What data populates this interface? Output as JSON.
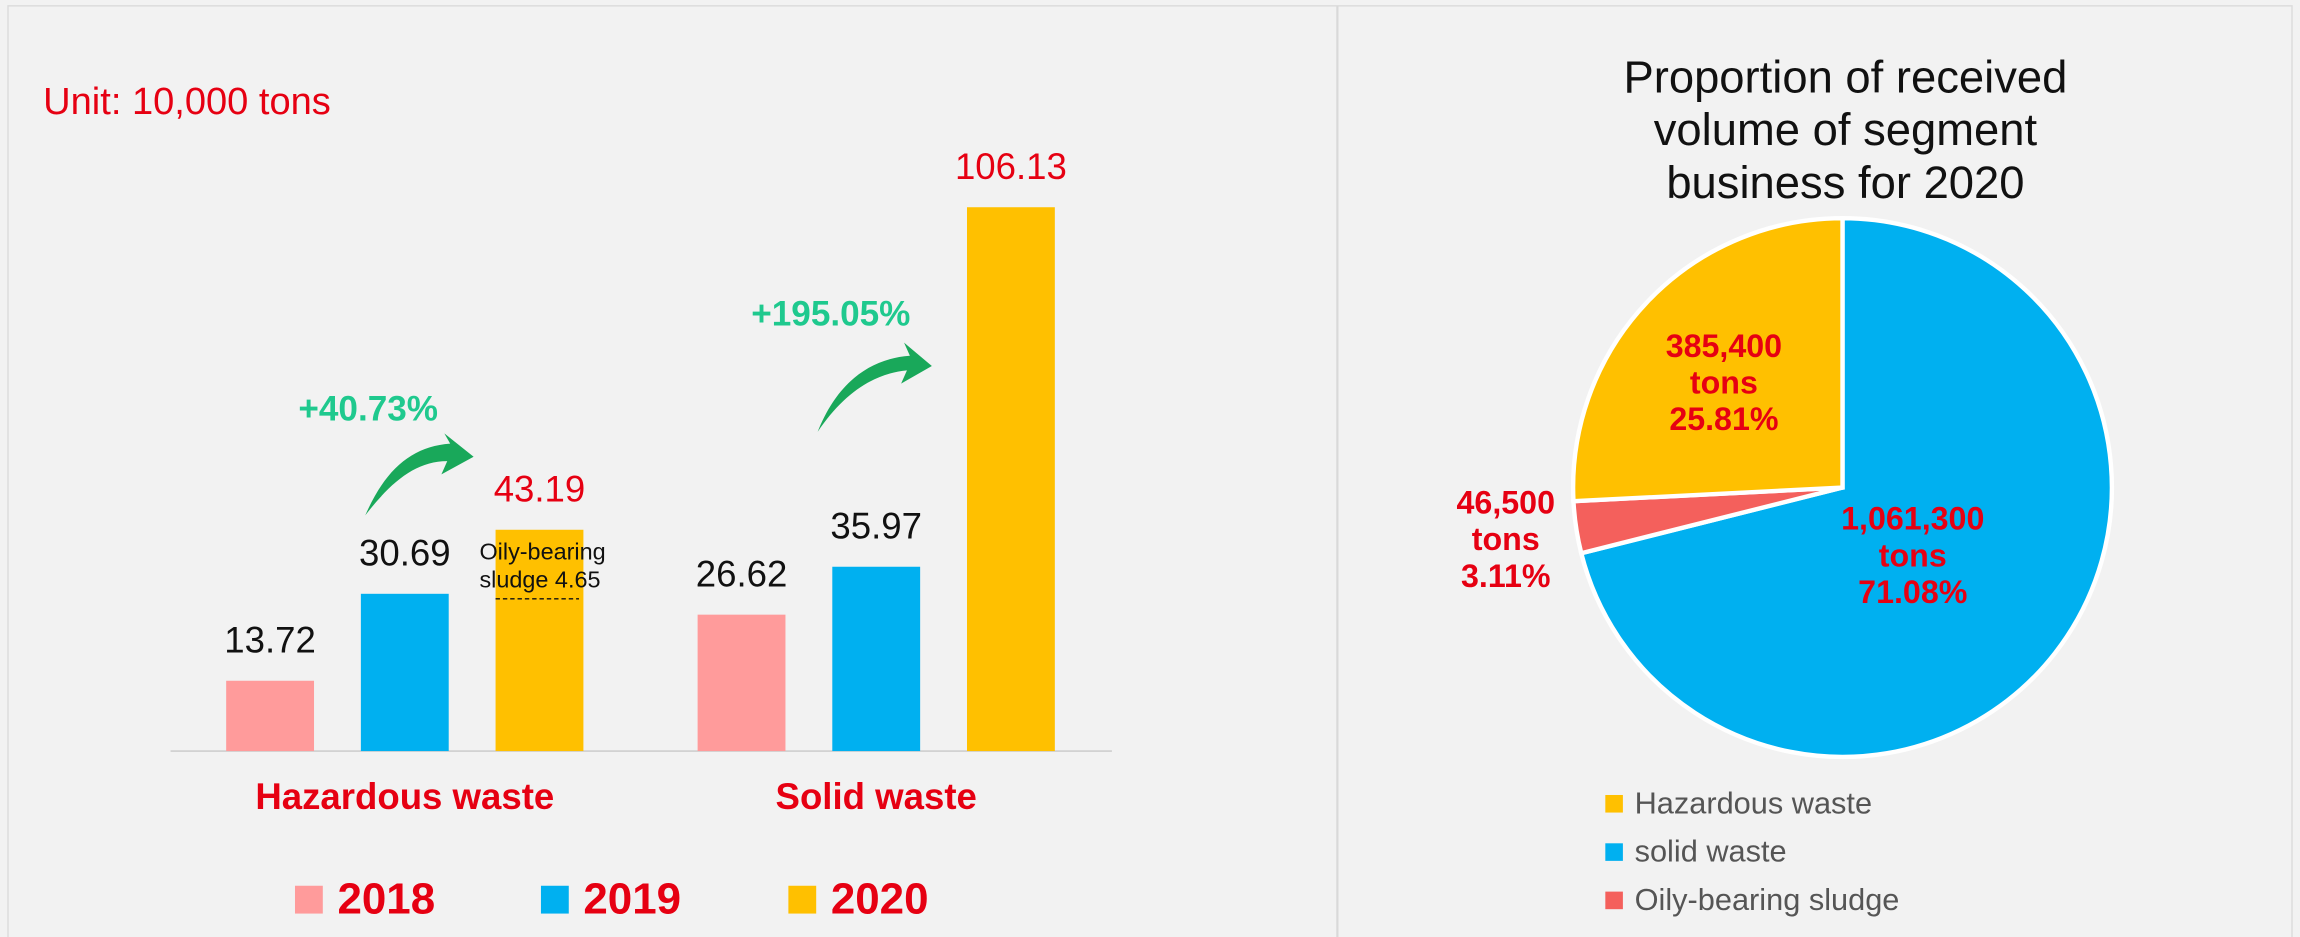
{
  "chart_data": [
    {
      "type": "bar",
      "annotations": [
        "Unit: 10,000 tons",
        "+40.73%",
        "+195.05%"
      ],
      "note_lines": [
        "Oily-bearing",
        "sludge 4.65"
      ],
      "categories": [
        "Hazardous waste",
        "Solid waste"
      ],
      "series": [
        {
          "name": "2018",
          "color": "#ff9b9b",
          "values": [
            13.72,
            26.62
          ]
        },
        {
          "name": "2019",
          "color": "#00b0f0",
          "values": [
            30.69,
            35.97
          ]
        },
        {
          "name": "2020",
          "color": "#ffc000",
          "values": [
            43.19,
            106.13
          ]
        }
      ]
    },
    {
      "type": "pie",
      "title": [
        "Proportion of received",
        "volume of  segment",
        "business for 2020"
      ],
      "categories": [
        "Hazardous waste",
        "solid waste",
        "Oily-bearing sludge"
      ],
      "values": [
        25.81,
        71.08,
        3.11
      ],
      "value_labels": [
        [
          "385,400",
          "tons",
          "25.81%"
        ],
        [
          "1,061,300",
          "tons",
          "71.08%"
        ],
        [
          "46,500",
          "tons",
          "3.11%"
        ]
      ],
      "colors": [
        "#ffc000",
        "#00b0f0",
        "#f4605c"
      ]
    }
  ]
}
